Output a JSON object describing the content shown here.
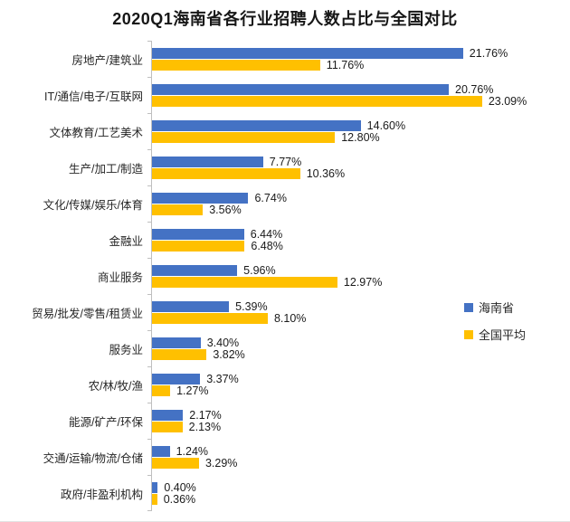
{
  "title": "2020Q1海南省各行业招聘人数占比与全国对比",
  "colors": {
    "hainan_blue": "#4472C4",
    "national_yellow": "#FFC000",
    "axis_gray": "#BFBFBF"
  },
  "legend": {
    "items": [
      {
        "label": "海南省",
        "color": "#4472C4"
      },
      {
        "label": "全国平均",
        "color": "#FFC000"
      }
    ]
  },
  "chart_data": {
    "type": "bar",
    "orientation": "horizontal",
    "title": "2020Q1海南省各行业招聘人数占比与全国对比",
    "categories": [
      "房地产/建筑业",
      "IT/通信/电子/互联网",
      "文体教育/工艺美术",
      "生产/加工/制造",
      "文化/传媒/娱乐/体育",
      "金融业",
      "商业服务",
      "贸易/批发/零售/租赁业",
      "服务业",
      "农/林/牧/渔",
      "能源/矿产/环保",
      "交通/运输/物流/仓储",
      "政府/非盈利机构"
    ],
    "series": [
      {
        "name": "海南省",
        "color": "#4472C4",
        "values": [
          21.76,
          20.76,
          14.6,
          7.77,
          6.74,
          6.44,
          5.96,
          5.39,
          3.4,
          3.37,
          2.17,
          1.24,
          0.4
        ]
      },
      {
        "name": "全国平均",
        "color": "#FFC000",
        "values": [
          11.76,
          23.09,
          12.8,
          10.36,
          3.56,
          6.48,
          12.97,
          8.1,
          3.82,
          1.27,
          2.13,
          3.29,
          0.36
        ]
      }
    ],
    "value_suffix": "%",
    "data_labels": true,
    "xlim": [
      0,
      25
    ],
    "grid": false,
    "legend_position": "right-middle"
  }
}
